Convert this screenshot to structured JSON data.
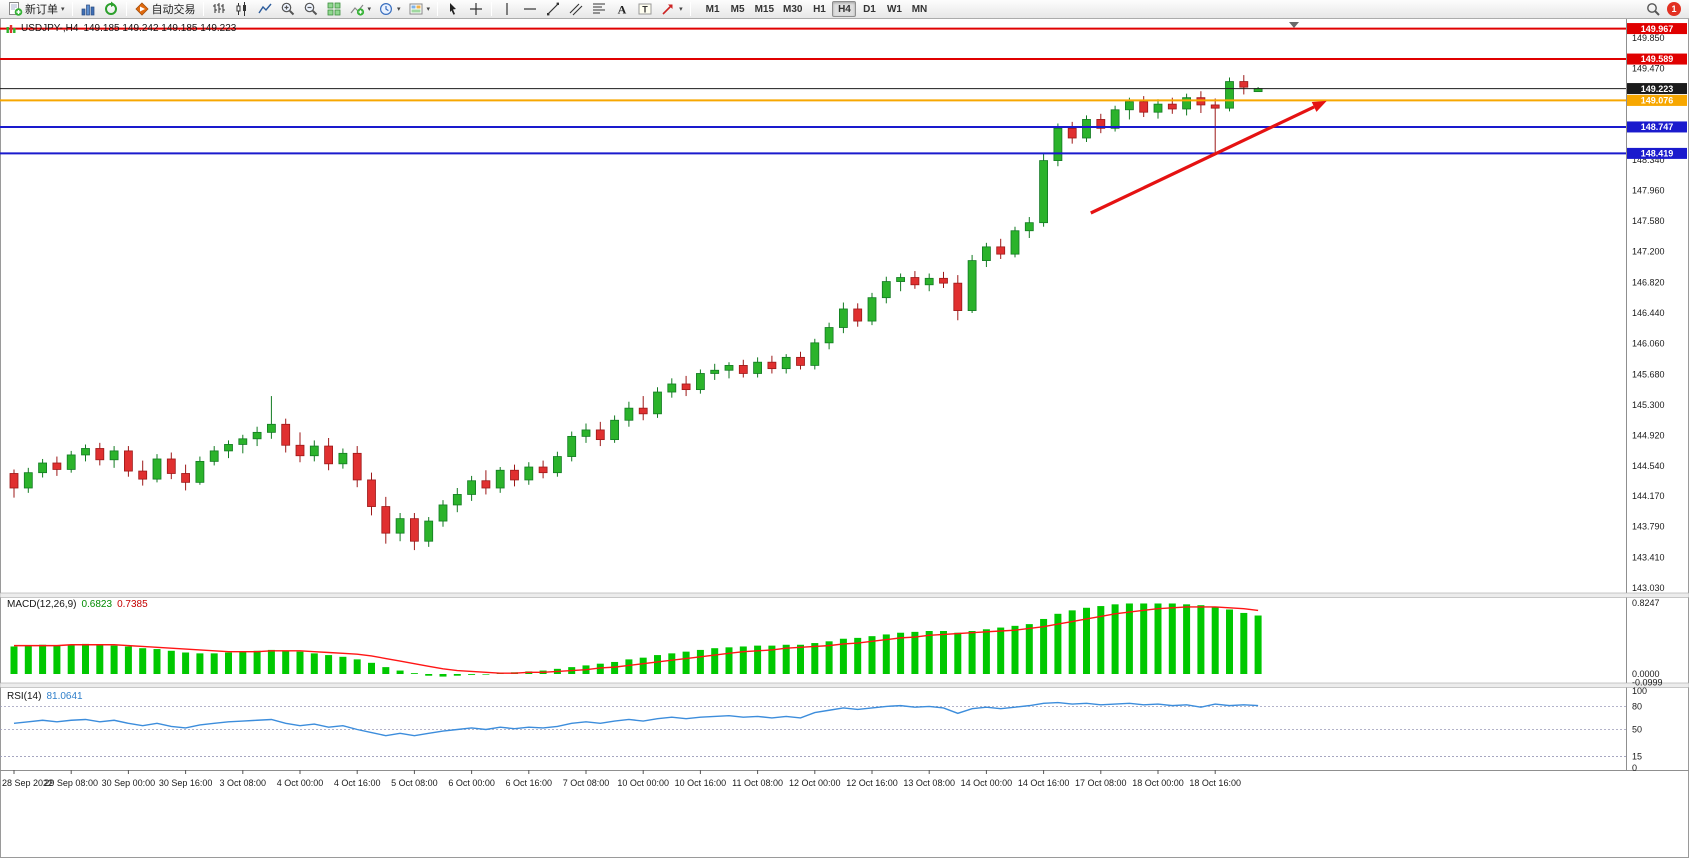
{
  "toolbar": {
    "new_order_label": "新订单",
    "autotrading_label": "自动交易",
    "timeframes": [
      "M1",
      "M5",
      "M15",
      "M30",
      "H1",
      "H4",
      "D1",
      "W1",
      "MN"
    ],
    "active_timeframe": "H4",
    "notification_count": "1"
  },
  "main_chart": {
    "title": "USDJPY-,H4",
    "ohlc_text": "149.185 149.242 149.185 149.223",
    "price_axis_labels": [
      "149.850",
      "149.470",
      "148.340",
      "147.960",
      "147.580",
      "147.200",
      "146.820",
      "146.440",
      "146.060",
      "145.680",
      "145.300",
      "144.920",
      "144.540",
      "144.170",
      "143.790",
      "143.410",
      "143.030"
    ],
    "price_tags": [
      {
        "text": "149.967",
        "price": 149.967,
        "color": "#e00000"
      },
      {
        "text": "149.589",
        "price": 149.589,
        "color": "#e00000"
      },
      {
        "text": "149.223",
        "price": 149.223,
        "color": "#1b1b1b"
      },
      {
        "text": "149.076",
        "price": 149.076,
        "color": "#f7a700"
      },
      {
        "text": "148.747",
        "price": 148.747,
        "color": "#1a1acd"
      },
      {
        "text": "148.419",
        "price": 148.419,
        "color": "#1a1acd"
      }
    ],
    "h_lines": [
      {
        "price": 149.967,
        "color": "#e00000",
        "width": 2
      },
      {
        "price": 149.589,
        "color": "#e00000",
        "width": 2
      },
      {
        "price": 149.223,
        "color": "#1b1b1b",
        "width": 1
      },
      {
        "price": 149.076,
        "color": "#f7a700",
        "width": 2
      },
      {
        "price": 148.747,
        "color": "#1a1acd",
        "width": 2
      },
      {
        "price": 148.419,
        "color": "#1a1acd",
        "width": 2
      }
    ],
    "trend_arrow": {
      "from_index": 75.3,
      "from_price": 147.68,
      "to_index": 91.8,
      "to_price": 149.07,
      "color": "#e51212"
    }
  },
  "chart_data": {
    "type": "candlestick",
    "symbol": "USDJPY-",
    "timeframe": "H4",
    "title": "USDJPY-,H4 149.185 149.242 149.185 149.223",
    "y_range": [
      143.03,
      149.967
    ],
    "label_step": 4,
    "bull_color": "#2bb32b",
    "bear_color": "#e03030",
    "time_labels": [
      "28 Sep 2022",
      "29 Sep 08:00",
      "30 Sep 00:00",
      "30 Sep 16:00",
      "3 Oct 08:00",
      "4 Oct 00:00",
      "4 Oct 16:00",
      "5 Oct 08:00",
      "6 Oct 00:00",
      "6 Oct 16:00",
      "7 Oct 08:00",
      "10 Oct 00:00",
      "10 Oct 16:00",
      "11 Oct 08:00",
      "12 Oct 00:00",
      "12 Oct 16:00",
      "13 Oct 08:00",
      "14 Oct 00:00",
      "14 Oct 16:00",
      "17 Oct 08:00",
      "18 Oct 00:00",
      "18 Oct 16:00"
    ],
    "candles_ohlc": [
      [
        144.45,
        144.5,
        144.15,
        144.27
      ],
      [
        144.27,
        144.52,
        144.21,
        144.46
      ],
      [
        144.46,
        144.63,
        144.4,
        144.58
      ],
      [
        144.58,
        144.66,
        144.42,
        144.5
      ],
      [
        144.5,
        144.73,
        144.46,
        144.68
      ],
      [
        144.68,
        144.81,
        144.6,
        144.76
      ],
      [
        144.76,
        144.83,
        144.55,
        144.62
      ],
      [
        144.62,
        144.79,
        144.52,
        144.73
      ],
      [
        144.73,
        144.79,
        144.41,
        144.48
      ],
      [
        144.48,
        144.61,
        144.3,
        144.38
      ],
      [
        144.38,
        144.69,
        144.34,
        144.63
      ],
      [
        144.63,
        144.71,
        144.38,
        144.45
      ],
      [
        144.45,
        144.56,
        144.24,
        144.34
      ],
      [
        144.34,
        144.66,
        144.31,
        144.6
      ],
      [
        144.6,
        144.79,
        144.55,
        144.73
      ],
      [
        144.73,
        144.86,
        144.64,
        144.81
      ],
      [
        144.81,
        144.93,
        144.7,
        144.88
      ],
      [
        144.88,
        145.03,
        144.79,
        144.96
      ],
      [
        144.96,
        145.41,
        144.88,
        145.06
      ],
      [
        145.06,
        145.13,
        144.71,
        144.8
      ],
      [
        144.8,
        144.96,
        144.59,
        144.67
      ],
      [
        144.67,
        144.86,
        144.6,
        144.79
      ],
      [
        144.79,
        144.89,
        144.49,
        144.57
      ],
      [
        144.57,
        144.76,
        144.51,
        144.7
      ],
      [
        144.7,
        144.79,
        144.28,
        144.37
      ],
      [
        144.37,
        144.46,
        143.93,
        144.04
      ],
      [
        144.04,
        144.16,
        143.58,
        143.71
      ],
      [
        143.71,
        143.96,
        143.61,
        143.89
      ],
      [
        143.89,
        143.96,
        143.5,
        143.61
      ],
      [
        143.61,
        143.91,
        143.54,
        143.86
      ],
      [
        143.86,
        144.12,
        143.79,
        144.06
      ],
      [
        144.06,
        144.27,
        143.97,
        144.19
      ],
      [
        144.19,
        144.42,
        144.11,
        144.36
      ],
      [
        144.36,
        144.49,
        144.19,
        144.27
      ],
      [
        144.27,
        144.53,
        144.21,
        144.49
      ],
      [
        144.49,
        144.56,
        144.29,
        144.37
      ],
      [
        144.37,
        144.59,
        144.31,
        144.53
      ],
      [
        144.53,
        144.61,
        144.39,
        144.46
      ],
      [
        144.46,
        144.72,
        144.41,
        144.66
      ],
      [
        144.66,
        144.97,
        144.6,
        144.91
      ],
      [
        144.91,
        145.07,
        144.83,
        144.99
      ],
      [
        144.99,
        145.09,
        144.79,
        144.87
      ],
      [
        144.87,
        145.17,
        144.83,
        145.11
      ],
      [
        145.11,
        145.34,
        145.03,
        145.26
      ],
      [
        145.26,
        145.41,
        145.11,
        145.19
      ],
      [
        145.19,
        145.52,
        145.14,
        145.46
      ],
      [
        145.46,
        145.63,
        145.39,
        145.56
      ],
      [
        145.56,
        145.66,
        145.41,
        145.49
      ],
      [
        145.49,
        145.74,
        145.44,
        145.69
      ],
      [
        145.69,
        145.81,
        145.61,
        145.73
      ],
      [
        145.73,
        145.83,
        145.63,
        145.79
      ],
      [
        145.79,
        145.86,
        145.64,
        145.69
      ],
      [
        145.69,
        145.89,
        145.64,
        145.83
      ],
      [
        145.83,
        145.91,
        145.69,
        145.75
      ],
      [
        145.75,
        145.93,
        145.69,
        145.89
      ],
      [
        145.89,
        145.96,
        145.74,
        145.79
      ],
      [
        145.79,
        146.12,
        145.74,
        146.07
      ],
      [
        146.07,
        146.32,
        145.99,
        146.26
      ],
      [
        146.26,
        146.57,
        146.19,
        146.49
      ],
      [
        146.49,
        146.56,
        146.27,
        146.34
      ],
      [
        146.34,
        146.69,
        146.29,
        146.63
      ],
      [
        146.63,
        146.89,
        146.56,
        146.83
      ],
      [
        146.83,
        146.93,
        146.71,
        146.88
      ],
      [
        146.88,
        146.96,
        146.74,
        146.79
      ],
      [
        146.79,
        146.93,
        146.71,
        146.87
      ],
      [
        146.87,
        146.95,
        146.75,
        146.81
      ],
      [
        146.81,
        146.91,
        146.35,
        146.47
      ],
      [
        146.47,
        147.16,
        146.44,
        147.09
      ],
      [
        147.09,
        147.31,
        147.01,
        147.26
      ],
      [
        147.26,
        147.36,
        147.11,
        147.17
      ],
      [
        147.17,
        147.51,
        147.13,
        147.46
      ],
      [
        147.46,
        147.63,
        147.37,
        147.56
      ],
      [
        147.56,
        148.42,
        147.51,
        148.33
      ],
      [
        148.33,
        148.79,
        148.26,
        148.73
      ],
      [
        148.73,
        148.81,
        148.54,
        148.61
      ],
      [
        148.61,
        148.89,
        148.56,
        148.84
      ],
      [
        148.84,
        148.91,
        148.67,
        148.73
      ],
      [
        148.73,
        149.01,
        148.69,
        148.96
      ],
      [
        148.96,
        149.11,
        148.84,
        149.06
      ],
      [
        149.06,
        149.13,
        148.87,
        148.93
      ],
      [
        148.93,
        149.09,
        148.85,
        149.03
      ],
      [
        149.03,
        149.11,
        148.91,
        148.97
      ],
      [
        148.97,
        149.16,
        148.89,
        149.11
      ],
      [
        149.11,
        149.19,
        148.92,
        149.02
      ],
      [
        149.02,
        149.1,
        148.42,
        148.98
      ],
      [
        148.98,
        149.36,
        148.94,
        149.31
      ],
      [
        149.31,
        149.39,
        149.15,
        149.24
      ],
      [
        149.185,
        149.242,
        149.185,
        149.223
      ]
    ]
  },
  "macd": {
    "label": "MACD(12,26,9)",
    "value_main": "0.6823",
    "value_signal": "0.7385",
    "axis_labels": [
      "0.8247",
      "0.0000",
      "-0.0999"
    ],
    "hist_color": "#00c800",
    "signal_color": "#ff1515",
    "histogram": [
      0.32,
      0.33,
      0.34,
      0.33,
      0.34,
      0.35,
      0.34,
      0.33,
      0.32,
      0.3,
      0.29,
      0.27,
      0.25,
      0.24,
      0.24,
      0.25,
      0.26,
      0.27,
      0.28,
      0.27,
      0.26,
      0.24,
      0.22,
      0.2,
      0.17,
      0.13,
      0.08,
      0.04,
      0.01,
      -0.02,
      -0.03,
      -0.02,
      -0.01,
      0.0,
      0.01,
      0.02,
      0.03,
      0.04,
      0.06,
      0.08,
      0.1,
      0.12,
      0.14,
      0.17,
      0.19,
      0.22,
      0.24,
      0.26,
      0.28,
      0.3,
      0.31,
      0.32,
      0.33,
      0.33,
      0.34,
      0.34,
      0.36,
      0.38,
      0.41,
      0.42,
      0.44,
      0.46,
      0.48,
      0.49,
      0.5,
      0.5,
      0.48,
      0.5,
      0.52,
      0.54,
      0.56,
      0.58,
      0.64,
      0.7,
      0.74,
      0.77,
      0.79,
      0.81,
      0.82,
      0.82,
      0.82,
      0.82,
      0.81,
      0.8,
      0.78,
      0.75,
      0.71,
      0.68
    ],
    "signal": [
      0.33,
      0.33,
      0.33,
      0.33,
      0.34,
      0.34,
      0.34,
      0.34,
      0.33,
      0.32,
      0.31,
      0.3,
      0.29,
      0.28,
      0.27,
      0.26,
      0.26,
      0.26,
      0.27,
      0.27,
      0.27,
      0.26,
      0.25,
      0.24,
      0.23,
      0.21,
      0.18,
      0.15,
      0.12,
      0.09,
      0.06,
      0.04,
      0.03,
      0.02,
      0.01,
      0.01,
      0.02,
      0.02,
      0.03,
      0.04,
      0.05,
      0.07,
      0.08,
      0.1,
      0.12,
      0.14,
      0.16,
      0.18,
      0.2,
      0.22,
      0.24,
      0.26,
      0.27,
      0.28,
      0.3,
      0.31,
      0.32,
      0.33,
      0.35,
      0.36,
      0.38,
      0.4,
      0.42,
      0.43,
      0.45,
      0.46,
      0.47,
      0.48,
      0.49,
      0.5,
      0.51,
      0.53,
      0.55,
      0.58,
      0.61,
      0.64,
      0.67,
      0.7,
      0.72,
      0.74,
      0.76,
      0.77,
      0.78,
      0.78,
      0.78,
      0.77,
      0.76,
      0.7385
    ]
  },
  "rsi": {
    "label": "RSI(14)",
    "value": "81.0641",
    "axis_labels": [
      "100",
      "80",
      "50",
      "15",
      "0"
    ],
    "levels": [
      80,
      50,
      15
    ],
    "line_color": "#3c8ddc",
    "series": [
      58,
      60,
      62,
      60,
      62,
      63,
      60,
      62,
      58,
      55,
      58,
      54,
      52,
      56,
      58,
      60,
      61,
      62,
      63,
      58,
      55,
      57,
      53,
      55,
      50,
      46,
      42,
      45,
      42,
      45,
      48,
      50,
      52,
      50,
      53,
      51,
      53,
      52,
      54,
      58,
      60,
      58,
      61,
      63,
      61,
      64,
      66,
      64,
      66,
      67,
      68,
      66,
      67,
      65,
      67,
      65,
      72,
      75,
      78,
      76,
      78,
      80,
      81,
      79,
      80,
      78,
      71,
      77,
      79,
      77,
      79,
      81,
      84,
      85,
      83,
      84,
      82,
      83,
      84,
      82,
      83,
      81,
      82,
      79,
      83,
      81,
      82,
      81.06
    ]
  }
}
